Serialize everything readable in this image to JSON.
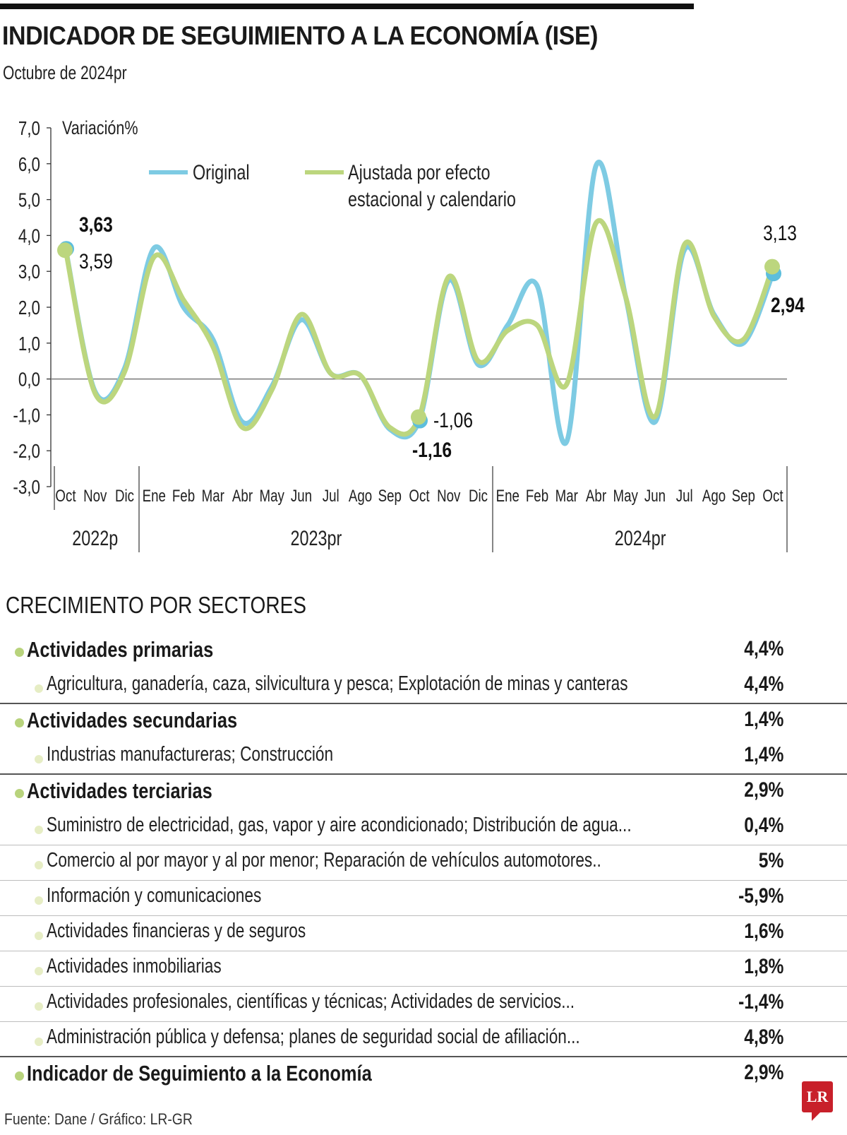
{
  "header": {
    "title": "INDICADOR DE SEGUIMIENTO A LA ECONOMÍA (ISE)",
    "subtitle": "Octubre de 2024pr"
  },
  "chart_data": {
    "type": "line",
    "title": "INDICADOR DE SEGUIMIENTO A LA ECONOMÍA (ISE)",
    "ylabel": "Variación%",
    "xlabel": "",
    "ylim": [
      -3.0,
      7.0
    ],
    "yticks": [
      "7,0",
      "6,0",
      "5,0",
      "4,0",
      "3,0",
      "2,0",
      "1,0",
      "0,0",
      "-1,0",
      "-2,0",
      "-3,0"
    ],
    "ytick_values": [
      7,
      6,
      5,
      4,
      3,
      2,
      1,
      0,
      -1,
      -2,
      -3
    ],
    "grid": false,
    "zero_line": true,
    "legend_position": "top",
    "categories": [
      "Oct",
      "Nov",
      "Dic",
      "Ene",
      "Feb",
      "Mar",
      "Abr",
      "May",
      "Jun",
      "Jul",
      "Ago",
      "Sep",
      "Oct",
      "Nov",
      "Dic",
      "Ene",
      "Feb",
      "Mar",
      "Abr",
      "May",
      "Jun",
      "Jul",
      "Ago",
      "Sep",
      "Oct"
    ],
    "year_groups": [
      {
        "label": "2022p",
        "start": 0,
        "end": 2
      },
      {
        "label": "2023pr",
        "start": 3,
        "end": 14
      },
      {
        "label": "2024pr",
        "start": 15,
        "end": 24
      }
    ],
    "series": [
      {
        "name": "Original",
        "color": "#7ecbe3",
        "values": [
          3.63,
          -0.35,
          0.3,
          3.65,
          2.0,
          1.1,
          -1.2,
          -0.2,
          1.65,
          0.15,
          0.1,
          -1.4,
          -1.16,
          2.75,
          0.4,
          1.5,
          2.6,
          -1.75,
          5.95,
          2.3,
          -1.2,
          3.6,
          1.8,
          1.0,
          2.94
        ]
      },
      {
        "name": "Ajustada por efecto estacional y calendario",
        "legend_lines": [
          "Ajustada por efecto",
          "estacional y calendario"
        ],
        "color": "#bcd67e",
        "values": [
          3.59,
          -0.4,
          0.2,
          3.4,
          2.2,
          0.9,
          -1.35,
          -0.3,
          1.8,
          0.15,
          0.1,
          -1.35,
          -1.06,
          2.85,
          0.5,
          1.35,
          1.5,
          -0.15,
          4.35,
          2.3,
          -1.05,
          3.75,
          1.75,
          1.1,
          3.13
        ]
      }
    ],
    "annotations": [
      {
        "text": "3,63",
        "series": "Original",
        "index": 0,
        "bold": true
      },
      {
        "text": "3,59",
        "series": "Ajustada por efecto estacional y calendario",
        "index": 0,
        "bold": false
      },
      {
        "text": "-1,06",
        "series": "Ajustada por efecto estacional y calendario",
        "index": 12,
        "bold": false
      },
      {
        "text": "-1,16",
        "series": "Original",
        "index": 12,
        "bold": true
      },
      {
        "text": "3,13",
        "series": "Ajustada por efecto estacional y calendario",
        "index": 24,
        "bold": false
      },
      {
        "text": "2,94",
        "series": "Original",
        "index": 24,
        "bold": true
      }
    ]
  },
  "sectors": {
    "title": "CRECIMIENTO POR SECTORES",
    "rows": [
      {
        "level": "main",
        "label": "Actividades primarias",
        "value": "4,4%",
        "divider": "none"
      },
      {
        "level": "sub",
        "label": "Agricultura, ganadería, caza, silvicultura y pesca; Explotación de minas y canteras",
        "value": "4,4%",
        "divider": "strong"
      },
      {
        "level": "main",
        "label": "Actividades secundarias",
        "value": "1,4%",
        "divider": "none"
      },
      {
        "level": "sub",
        "label": "Industrias manufactureras; Construcción",
        "value": "1,4%",
        "divider": "strong"
      },
      {
        "level": "main",
        "label": "Actividades terciarias",
        "value": "2,9%",
        "divider": "none"
      },
      {
        "level": "sub",
        "label": "Suministro de electricidad, gas, vapor y aire acondicionado; Distribución de agua...",
        "value": "0,4%",
        "divider": "light"
      },
      {
        "level": "sub",
        "label": "Comercio al por mayor y al por menor; Reparación de vehículos automotores..",
        "value": "5%",
        "divider": "light"
      },
      {
        "level": "sub",
        "label": "Información y comunicaciones",
        "value": "-5,9%",
        "divider": "light"
      },
      {
        "level": "sub",
        "label": "Actividades financieras y de seguros",
        "value": "1,6%",
        "divider": "light"
      },
      {
        "level": "sub",
        "label": "Actividades inmobiliarias",
        "value": "1,8%",
        "divider": "light"
      },
      {
        "level": "sub",
        "label": "Actividades profesionales, científicas y técnicas; Actividades de servicios...",
        "value": "-1,4%",
        "divider": "light"
      },
      {
        "level": "sub",
        "label": "Administración pública y defensa; planes de seguridad social de afiliación...",
        "value": "4,8%",
        "divider": "strong"
      },
      {
        "level": "main",
        "label": "Indicador de Seguimiento a la Economía",
        "value": "2,9%",
        "divider": "none"
      }
    ]
  },
  "footer": {
    "source": "Fuente: Dane / Gráfico: LR-GR",
    "logo_text": "LR",
    "logo_color": "#c8202a"
  }
}
